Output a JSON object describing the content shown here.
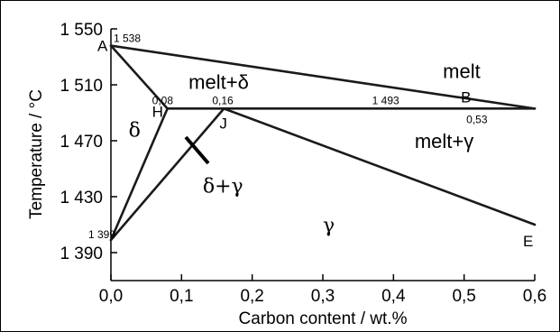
{
  "chart_data": {
    "type": "line",
    "xlabel": "Carbon content / wt.%",
    "ylabel": "Temperature / °C",
    "xlim": [
      0.0,
      0.6
    ],
    "ylim": [
      1370,
      1550
    ],
    "x_ticks": [
      {
        "value": 0.0,
        "label": "0,0"
      },
      {
        "value": 0.1,
        "label": "0,1"
      },
      {
        "value": 0.2,
        "label": "0,2"
      },
      {
        "value": 0.3,
        "label": "0,3"
      },
      {
        "value": 0.4,
        "label": "0,4"
      },
      {
        "value": 0.5,
        "label": "0,5"
      },
      {
        "value": 0.6,
        "label": "0,6"
      }
    ],
    "y_ticks": [
      {
        "value": 1550,
        "label": "1 550"
      },
      {
        "value": 1510,
        "label": "1 510"
      },
      {
        "value": 1470,
        "label": "1 470"
      },
      {
        "value": 1430,
        "label": "1 430"
      },
      {
        "value": 1390,
        "label": "1 390"
      }
    ],
    "lines": [
      {
        "from": [
          0.0,
          1538
        ],
        "to": [
          0.6,
          1493
        ]
      },
      {
        "from": [
          0.0,
          1538
        ],
        "to": [
          0.08,
          1493
        ]
      },
      {
        "from": [
          0.08,
          1493
        ],
        "to": [
          0.6,
          1493
        ]
      },
      {
        "from": [
          0.08,
          1493
        ],
        "to": [
          0.0,
          1399
        ]
      },
      {
        "from": [
          0.0,
          1399
        ],
        "to": [
          0.16,
          1493
        ]
      },
      {
        "from": [
          0.16,
          1493
        ],
        "to": [
          0.6,
          1410
        ]
      }
    ],
    "points": [
      {
        "label": "A",
        "x": 0.0,
        "y": 1538
      },
      {
        "label": "H",
        "x": 0.08,
        "y": 1493
      },
      {
        "label": "J",
        "x": 0.16,
        "y": 1493
      },
      {
        "label": "B",
        "x": 0.53,
        "y": 1493
      },
      {
        "label": "E",
        "x": 0.6,
        "y": 1410
      }
    ],
    "value_labels": [
      {
        "text": "1 538",
        "x": 0.0,
        "y": 1538
      },
      {
        "text": "0,08",
        "x": 0.08,
        "y": 1493
      },
      {
        "text": "0,16",
        "x": 0.16,
        "y": 1493
      },
      {
        "text": "1 493",
        "x": 0.38,
        "y": 1493
      },
      {
        "text": "0,53",
        "x": 0.53,
        "y": 1493
      },
      {
        "text": "1 399",
        "x": 0.0,
        "y": 1399
      }
    ],
    "regions": [
      {
        "text": "melt",
        "x": 0.47,
        "y": 1515
      },
      {
        "text": "melt+δ",
        "x": 0.11,
        "y": 1507
      },
      {
        "text": "δ",
        "x": 0.025,
        "y": 1473
      },
      {
        "text": "melt+γ",
        "x": 0.43,
        "y": 1465
      },
      {
        "text": "δ+γ",
        "x": 0.13,
        "y": 1433
      },
      {
        "text": "γ",
        "x": 0.3,
        "y": 1405
      }
    ],
    "grid": false
  }
}
